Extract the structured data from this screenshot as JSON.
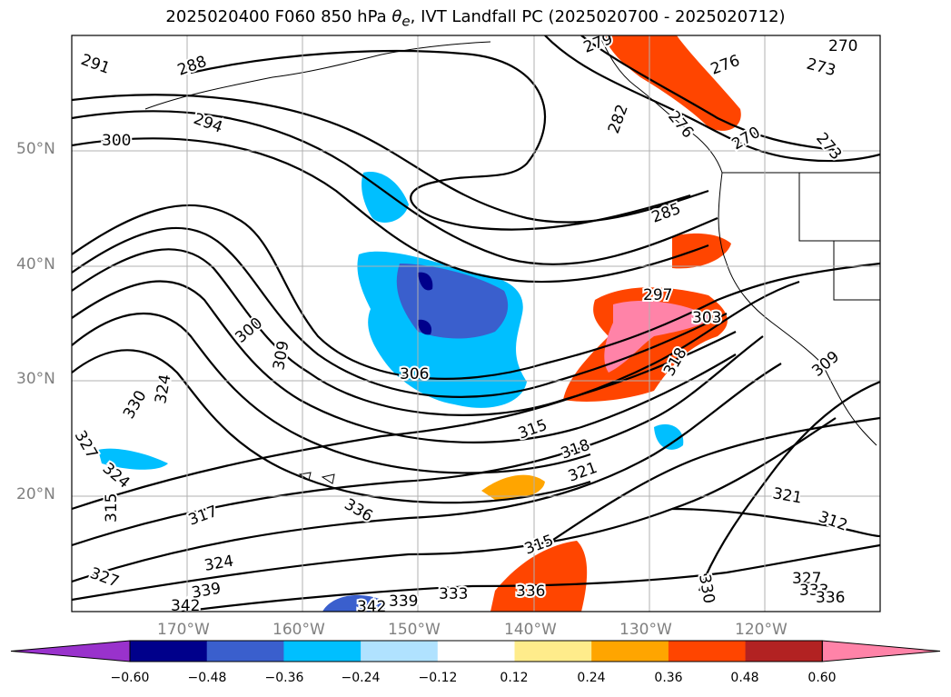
{
  "title": {
    "prefix": "2025020400 F060 850 hPa ",
    "theta": "θ",
    "theta_sub": "e",
    "suffix": ", IVT Landfall PC (2025020700 - 2025020712)"
  },
  "map": {
    "projection": "PlateCarree",
    "lon_range": [
      -180,
      -110
    ],
    "lat_range": [
      10,
      60
    ],
    "gridlines": true
  },
  "lat_labels": [
    "50°N",
    "40°N",
    "30°N",
    "20°N"
  ],
  "lon_labels": [
    "170°W",
    "160°W",
    "150°W",
    "140°W",
    "130°W",
    "120°W"
  ],
  "contour_labels": [
    "291",
    "288",
    "294",
    "300",
    "279",
    "270",
    "276",
    "273",
    "276",
    "270",
    "273",
    "282",
    "285",
    "300",
    "309",
    "306",
    "324",
    "330",
    "297",
    "303",
    "318",
    "309",
    "315",
    "318",
    "321",
    "327",
    "324",
    "315",
    "317",
    "327",
    "324",
    "339",
    "342",
    "342",
    "339",
    "333",
    "336",
    "315",
    "336",
    "321",
    "312",
    "327",
    "333",
    "336",
    "330"
  ],
  "colorbar": {
    "ticks": [
      "−0.60",
      "−0.48",
      "−0.36",
      "−0.24",
      "−0.12",
      "0.12",
      "0.24",
      "0.36",
      "0.48",
      "0.60"
    ],
    "colors": [
      "#9932cc",
      "#00008b",
      "#3a5fcd",
      "#00bfff",
      "#b0e2ff",
      "#ffffff",
      "#ffec8b",
      "#ffa500",
      "#ff4500",
      "#b22222",
      "#ff83a8"
    ],
    "extend": "both"
  }
}
